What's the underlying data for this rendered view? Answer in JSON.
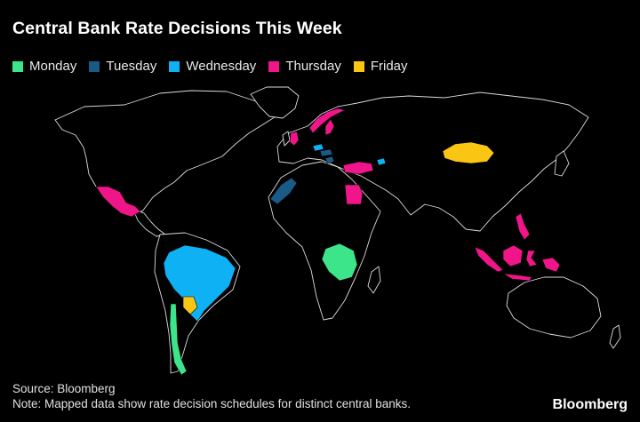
{
  "title": "Central Bank Rate Decisions This Week",
  "legend": [
    {
      "label": "Monday",
      "color": "#3de58a"
    },
    {
      "label": "Tuesday",
      "color": "#1a5a86"
    },
    {
      "label": "Wednesday",
      "color": "#0fb1f5"
    },
    {
      "label": "Thursday",
      "color": "#f0168a"
    },
    {
      "label": "Friday",
      "color": "#fbc613"
    }
  ],
  "source": "Source: Bloomberg",
  "note": "Note: Mapped data show rate decision schedules for distinct central banks.",
  "brand": "Bloomberg"
}
